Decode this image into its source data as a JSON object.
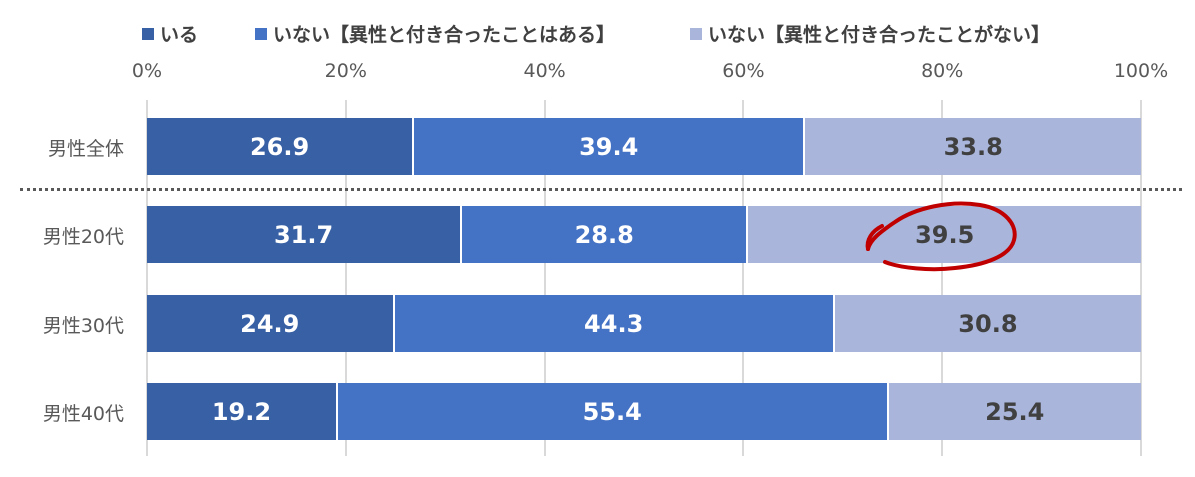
{
  "chart_data": {
    "type": "bar",
    "orientation": "horizontal",
    "stacked": "percent",
    "title": "",
    "xlabel": "",
    "ylabel": "",
    "xlim": [
      0,
      100
    ],
    "x_ticks": [
      "0%",
      "20%",
      "40%",
      "60%",
      "80%",
      "100%"
    ],
    "grid": true,
    "legend_position": "top",
    "categories": [
      "男性全体",
      "男性20代",
      "男性30代",
      "男性40代"
    ],
    "series": [
      {
        "name": "いる",
        "color": "#3760A5",
        "label_color": "#FFFFFF",
        "values": [
          26.9,
          31.7,
          24.9,
          19.2
        ]
      },
      {
        "name": "いない【異性と付き合ったことはある】",
        "color": "#4472C4",
        "label_color": "#FFFFFF",
        "values": [
          39.4,
          28.8,
          44.3,
          55.4
        ]
      },
      {
        "name": "いない【異性と付き合ったことがない】",
        "color": "#A9B5DA",
        "label_color": "#404040",
        "values": [
          33.8,
          39.5,
          30.8,
          25.4
        ]
      }
    ],
    "annotations": [
      {
        "type": "hand-drawn-circle",
        "color": "#C00000",
        "target": "男性20代 / いない【異性と付き合ったことがない】",
        "value": "39.5"
      },
      {
        "type": "dotted-separator",
        "after_category": "男性全体"
      }
    ]
  }
}
